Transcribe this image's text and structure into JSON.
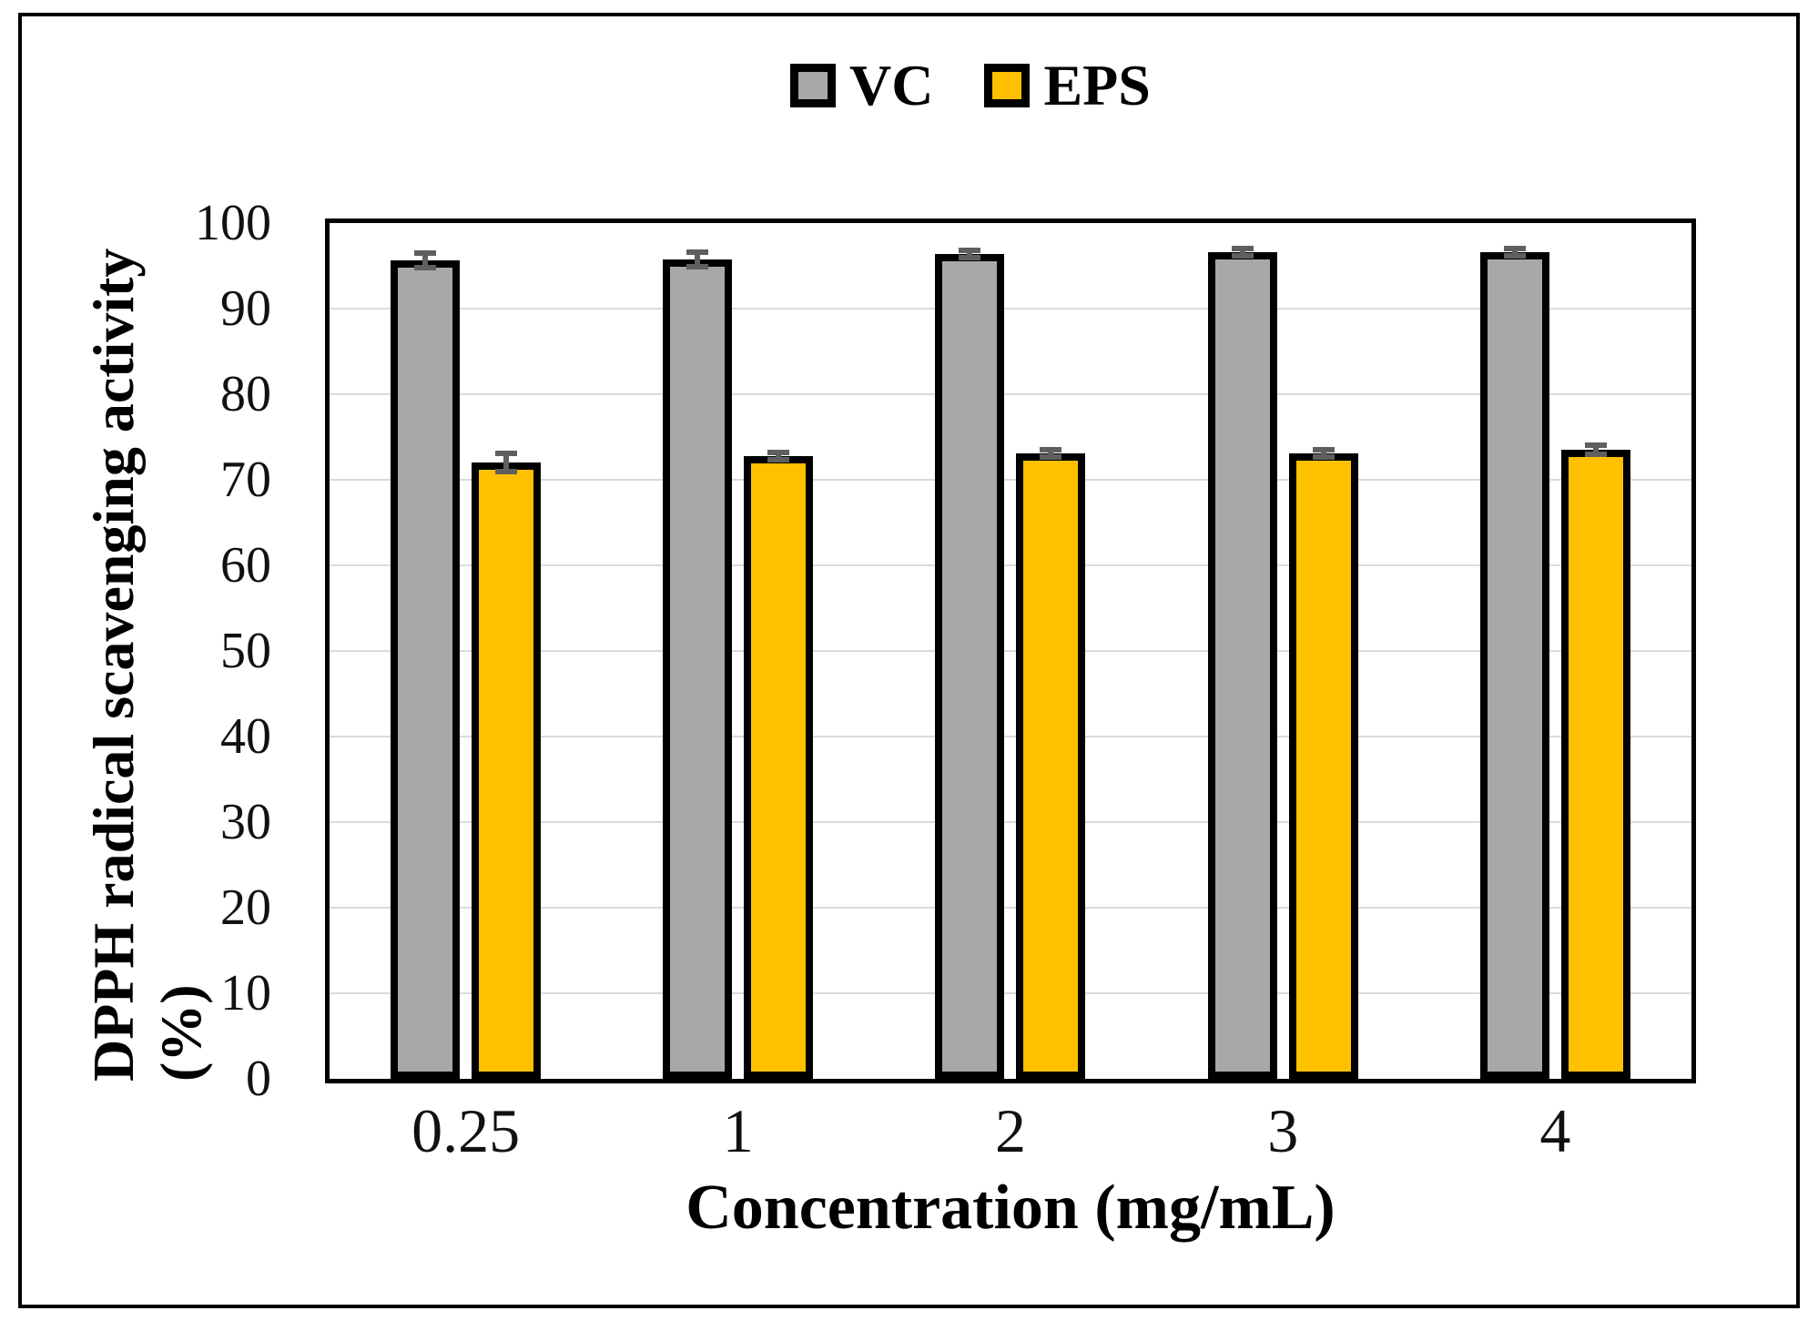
{
  "chart_data": {
    "type": "bar",
    "title": "",
    "xlabel": "Concentration (mg/mL)",
    "ylabel": "DPPH radical scavenging activity (%)",
    "ylabel_lines": [
      "DPPH radical scavenging activity",
      "(%)"
    ],
    "categories": [
      "0.25",
      "1",
      "2",
      "3",
      "4"
    ],
    "series": [
      {
        "name": "VC",
        "color": "#A8A8A8",
        "values": [
          95.6,
          95.7,
          96.4,
          96.6,
          96.6
        ],
        "errors": [
          1.2,
          1.2,
          0.7,
          0.7,
          0.7
        ]
      },
      {
        "name": "EPS",
        "color": "#FFC000",
        "values": [
          72.0,
          72.8,
          73.1,
          73.1,
          73.5
        ],
        "errors": [
          1.4,
          0.7,
          0.7,
          0.7,
          0.8
        ]
      }
    ],
    "ylim": [
      0,
      100
    ],
    "yticks": [
      0,
      10,
      20,
      30,
      40,
      50,
      60,
      70,
      80,
      90,
      100
    ],
    "grid": "horizontal-major",
    "gridline_color": "#dadada",
    "bar_border_color": "#000000",
    "error_bar_color": "#5f5f5f",
    "legend_position": "top-center"
  }
}
